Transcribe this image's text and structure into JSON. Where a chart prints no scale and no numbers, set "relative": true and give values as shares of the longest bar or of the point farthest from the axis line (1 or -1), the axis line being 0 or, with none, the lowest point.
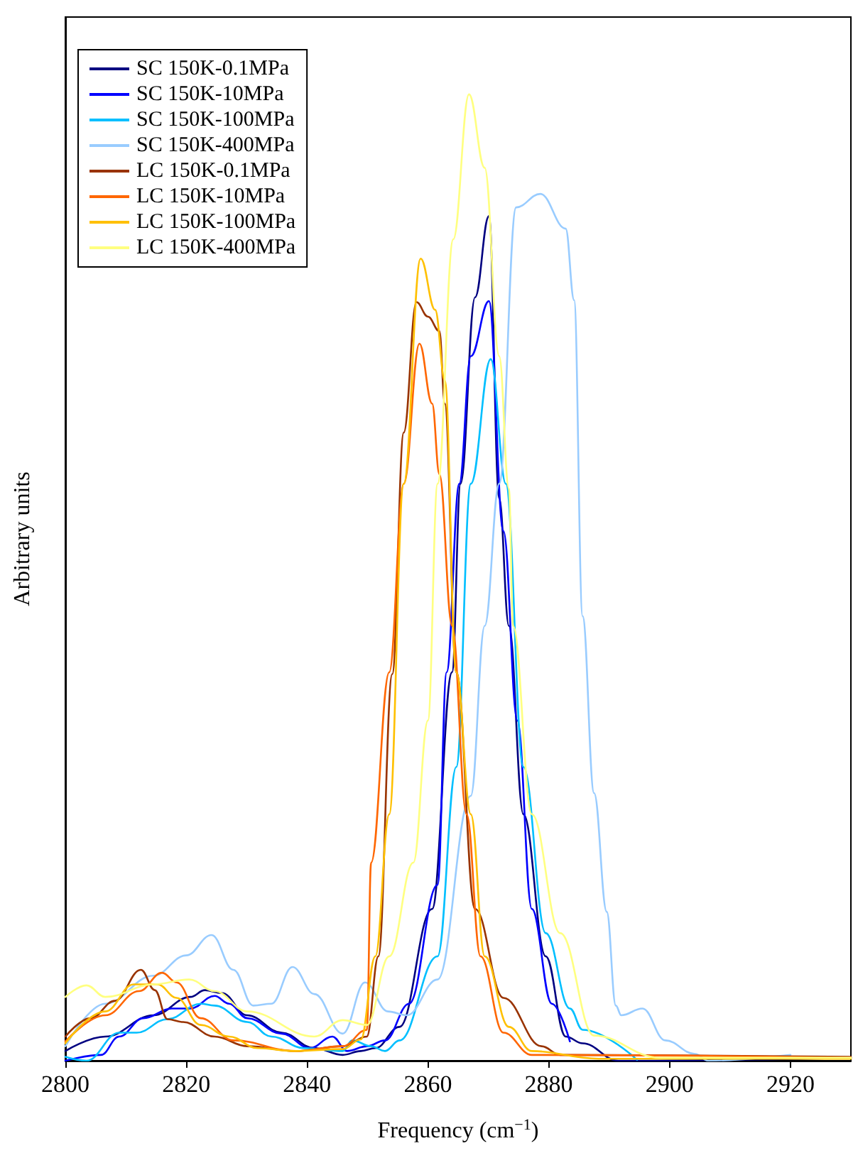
{
  "chart_data": {
    "type": "line",
    "relative": true,
    "xlabel": "Frequency (cm$^{−1}$)",
    "ylabel": "Arbitrary units",
    "xlim": [
      2800,
      2930
    ],
    "xticks": [
      2800,
      2820,
      2840,
      2860,
      2880,
      2900,
      2920
    ],
    "grid": false,
    "legend": "top left",
    "marker": "none",
    "line_style": "solid",
    "series": [
      {
        "name": "SC 150K-0.1MPa",
        "color": "#000080",
        "x": [
          2800,
          2806.6,
          2814.6,
          2820.7,
          2823.1,
          2825.9,
          2830.1,
          2835.8,
          2841.2,
          2845.9,
          2848.9,
          2851.3,
          2855.3,
          2860.7,
          2864,
          2865.4,
          2867.8,
          2870.1,
          2871.8,
          2873.4,
          2875.8,
          2879.5,
          2882.8,
          2885.6,
          2891.5,
          2930
        ],
        "values": [
          0.01,
          0.025,
          0.047,
          0.066,
          0.073,
          0.07,
          0.047,
          0.029,
          0.013,
          0.006,
          0.01,
          0.013,
          0.035,
          0.157,
          0.402,
          0.597,
          0.79,
          0.874,
          0.582,
          0.45,
          0.255,
          0.108,
          0.025,
          0.018,
          0,
          0.003
        ]
      },
      {
        "name": "SC 150K-10MPa",
        "color": "#0000ff",
        "x": [
          2800,
          2805.9,
          2808.9,
          2812.9,
          2817.6,
          2820.7,
          2824.7,
          2827.1,
          2830.1,
          2835.8,
          2840.5,
          2844.2,
          2846.6,
          2849.9,
          2852.9,
          2856.9,
          2861.6,
          2863.1,
          2865.2,
          2867.1,
          2870.1,
          2872.5,
          2874.8,
          2877.2,
          2880.5,
          2883.5
        ],
        "values": [
          0,
          0.006,
          0.025,
          0.044,
          0.054,
          0.054,
          0.067,
          0.059,
          0.044,
          0.028,
          0.013,
          0.025,
          0.01,
          0.015,
          0.021,
          0.059,
          0.182,
          0.402,
          0.597,
          0.729,
          0.786,
          0.548,
          0.352,
          0.157,
          0.059,
          0.02
        ]
      },
      {
        "name": "SC 150K-100MPa",
        "color": "#00bfff",
        "x": [
          2800,
          2803.5,
          2808.9,
          2811.8,
          2816.9,
          2822.4,
          2824.7,
          2830.1,
          2834.1,
          2839.5,
          2845.9,
          2847.5,
          2850.6,
          2852.9,
          2855.3,
          2861.6,
          2864.7,
          2867.1,
          2870.4,
          2872.9,
          2875.8,
          2879.5,
          2883.5,
          2885.6,
          2894.6
        ],
        "values": [
          0.004,
          0,
          0.029,
          0.029,
          0.043,
          0.059,
          0.057,
          0.04,
          0.025,
          0.013,
          0.01,
          0.021,
          0.015,
          0.01,
          0.021,
          0.108,
          0.304,
          0.597,
          0.726,
          0.597,
          0.304,
          0.132,
          0.054,
          0.032,
          0.001
        ]
      },
      {
        "name": "SC 150K-400MPa",
        "color": "#99ccff",
        "x": [
          2800,
          2806.6,
          2814.6,
          2820,
          2824.2,
          2827.8,
          2831.1,
          2834.1,
          2837.6,
          2841.2,
          2845.9,
          2849.6,
          2853.4,
          2856.5,
          2861.6,
          2867.1,
          2869.4,
          2871.8,
          2874.6,
          2878.6,
          2882.8,
          2884.2,
          2885.6,
          2887.5,
          2889.6,
          2891.1,
          2892,
          2895.5,
          2899.3,
          2904.2,
          2906.4,
          2920
        ],
        "values": [
          0.015,
          0.059,
          0.088,
          0.109,
          0.13,
          0.094,
          0.057,
          0.059,
          0.097,
          0.069,
          0.028,
          0.081,
          0.051,
          0.047,
          0.084,
          0.274,
          0.45,
          0.597,
          0.883,
          0.897,
          0.861,
          0.787,
          0.46,
          0.277,
          0.154,
          0.057,
          0.047,
          0.054,
          0.021,
          0.007,
          0,
          0.006
        ]
      },
      {
        "name": "LC 150K-0.1MPa",
        "color": "#993300",
        "x": [
          2800,
          2804.2,
          2808.2,
          2812.5,
          2814.8,
          2816.9,
          2819.5,
          2824.7,
          2830.1,
          2838.1,
          2845.9,
          2849.9,
          2851.8,
          2854.1,
          2856,
          2858.1,
          2860,
          2861.9,
          2862.8,
          2864.7,
          2867.8,
          2872.5,
          2878.8,
          2881.9,
          2930
        ],
        "values": [
          0.025,
          0.044,
          0.062,
          0.094,
          0.073,
          0.043,
          0.04,
          0.025,
          0.015,
          0.01,
          0.015,
          0.025,
          0.108,
          0.4,
          0.65,
          0.785,
          0.77,
          0.755,
          0.68,
          0.402,
          0.157,
          0.065,
          0.015,
          0.006,
          0.004
        ]
      },
      {
        "name": "LC 150K-10MPa",
        "color": "#ff6600",
        "x": [
          2800,
          2806.6,
          2812.2,
          2816,
          2818.4,
          2822.4,
          2827.8,
          2838.1,
          2845.9,
          2849.9,
          2850.6,
          2853.6,
          2856,
          2858.6,
          2860.7,
          2861.9,
          2864,
          2866.4,
          2868.7,
          2872.5,
          2877.2,
          2930
        ],
        "values": [
          0.02,
          0.047,
          0.072,
          0.091,
          0.081,
          0.044,
          0.021,
          0.01,
          0.015,
          0.032,
          0.205,
          0.402,
          0.597,
          0.742,
          0.68,
          0.607,
          0.45,
          0.255,
          0.108,
          0.029,
          0.006,
          0.003
        ]
      },
      {
        "name": "LC 150K-100MPa",
        "color": "#ffc000",
        "x": [
          2800,
          2806.6,
          2811.3,
          2815.3,
          2818.4,
          2822.4,
          2827.1,
          2831.8,
          2838.1,
          2845.9,
          2848.9,
          2851.3,
          2853.6,
          2856,
          2858.8,
          2861.2,
          2862.8,
          2864.7,
          2867.1,
          2869.4,
          2873.4,
          2877.2,
          2888.2,
          2930
        ],
        "values": [
          0.018,
          0.051,
          0.079,
          0.079,
          0.065,
          0.037,
          0.025,
          0.013,
          0.01,
          0.012,
          0.022,
          0.108,
          0.255,
          0.597,
          0.83,
          0.777,
          0.704,
          0.402,
          0.255,
          0.108,
          0.035,
          0.01,
          0.002,
          0.002
        ]
      },
      {
        "name": "LC 150K-400MPa",
        "color": "#ffff80",
        "x": [
          2800,
          2803.5,
          2806.6,
          2814.6,
          2820.5,
          2824.7,
          2830.1,
          2841.2,
          2845.9,
          2849.9,
          2853.6,
          2857.6,
          2860,
          2861.6,
          2864.2,
          2866.8,
          2869.4,
          2871.8,
          2873.4,
          2874.1,
          2877.2,
          2881.9,
          2887.5,
          2898.4,
          2930
        ],
        "values": [
          0.066,
          0.078,
          0.066,
          0.079,
          0.084,
          0.072,
          0.051,
          0.025,
          0.042,
          0.037,
          0.108,
          0.205,
          0.352,
          0.597,
          0.85,
          1,
          0.924,
          0.729,
          0.592,
          0.45,
          0.255,
          0.132,
          0.026,
          0.003,
          0.003
        ]
      }
    ]
  }
}
